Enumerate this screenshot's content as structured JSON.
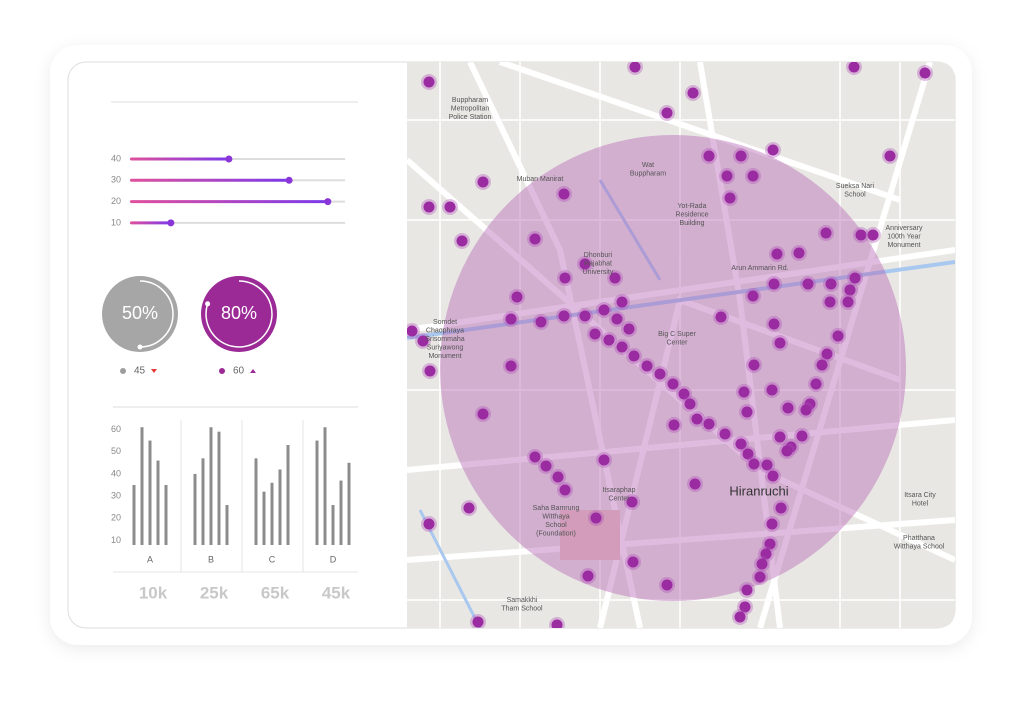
{
  "sliders": {
    "labels": [
      40,
      30,
      20,
      10
    ],
    "values": [
      46,
      74,
      92,
      19
    ]
  },
  "gauges": [
    {
      "value": 50,
      "label": "50%",
      "sub": 45
    },
    {
      "value": 80,
      "label": "80%",
      "sub": 60
    }
  ],
  "bars": {
    "ylim": [
      8,
      62
    ],
    "yticks": [
      10,
      20,
      30,
      40,
      50,
      60
    ],
    "categories": [
      "A",
      "B",
      "C",
      "D"
    ],
    "groups": [
      [
        35,
        61,
        55,
        46,
        35
      ],
      [
        40,
        47,
        61,
        59,
        26
      ],
      [
        47,
        32,
        36,
        42,
        53
      ],
      [
        55,
        61,
        26,
        37,
        45
      ]
    ],
    "footer": [
      "10k",
      "25k",
      "65k",
      "45k"
    ]
  },
  "map": {
    "labels": [
      {
        "lines": [
          "Buppharam",
          "Metropolitan",
          "Police Station"
        ]
      },
      {
        "lines": [
          "Wat",
          "Buppharam"
        ]
      },
      {
        "lines": [
          "Muban Manirat"
        ]
      },
      {
        "lines": [
          "Yot-Rada",
          "Residence",
          "Building"
        ]
      },
      {
        "lines": [
          "Dhonburi",
          "Rajabhat",
          "University"
        ]
      },
      {
        "lines": [
          "Arun Ammarin Rd."
        ]
      },
      {
        "lines": [
          "Sueksa Nari",
          "School"
        ]
      },
      {
        "lines": [
          "Anniversary",
          "100th Year",
          "Monument"
        ]
      },
      {
        "lines": [
          "Big C Super",
          "Center"
        ]
      },
      {
        "lines": [
          "Somdet",
          "Chaophraya",
          "Srisommaha",
          "Suriyawong",
          "Monument"
        ]
      },
      {
        "lines": [
          "Hiranruchi"
        ]
      },
      {
        "lines": [
          "Itsaraphap",
          "Center"
        ]
      },
      {
        "lines": [
          "Saha Bamrung",
          "Witthaya",
          "School",
          "(Foundation)"
        ]
      },
      {
        "lines": [
          "Itsara City",
          "Hotel"
        ]
      },
      {
        "lines": [
          "Phatthana",
          "Witthaya School"
        ]
      },
      {
        "lines": [
          "Samakkhi",
          "Tham School"
        ]
      }
    ]
  }
}
